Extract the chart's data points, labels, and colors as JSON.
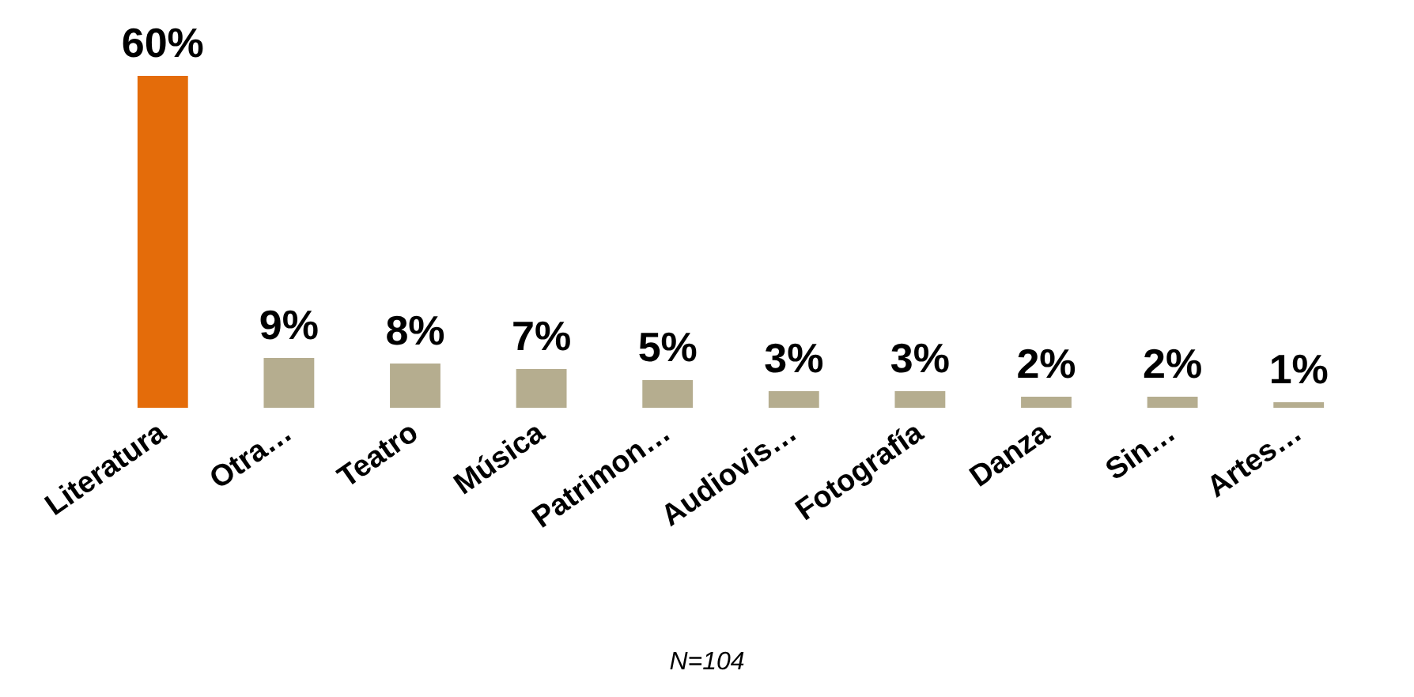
{
  "chart_data": {
    "type": "bar",
    "categories": [
      "Literatura",
      "Otra…",
      "Teatro",
      "Música",
      "Patrimon…",
      "Audiovis…",
      "Fotografía",
      "Danza",
      "Sin…",
      "Artes…"
    ],
    "values": [
      60,
      9,
      8,
      7,
      5,
      3,
      3,
      2,
      2,
      1
    ],
    "colors": [
      "#e46c0a",
      "#b5ad8f",
      "#b5ad8f",
      "#b5ad8f",
      "#b5ad8f",
      "#b5ad8f",
      "#b5ad8f",
      "#b5ad8f",
      "#b5ad8f",
      "#b5ad8f"
    ],
    "value_labels": [
      "60%",
      "9%",
      "8%",
      "7%",
      "5%",
      "3%",
      "3%",
      "2%",
      "2%",
      "1%"
    ],
    "annotations": [
      "N=104"
    ]
  }
}
